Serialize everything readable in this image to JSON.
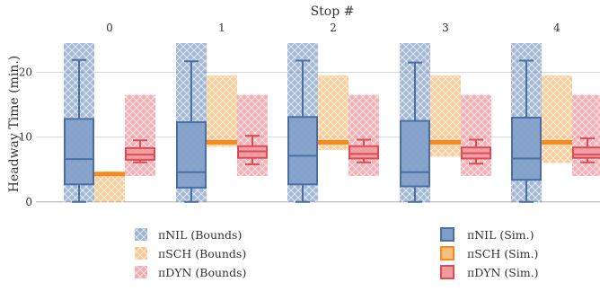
{
  "chart_data": {
    "type": "box",
    "title": "",
    "xlabel": "Stop #",
    "ylabel": "Headway Time (min.)",
    "ylim": [
      -1,
      24.5
    ],
    "yticks": [
      0,
      10,
      20
    ],
    "x_axis_position": "top",
    "grid": true,
    "legend_position": "bottom",
    "categories": [
      "0",
      "1",
      "2",
      "3",
      "4"
    ],
    "bounds": [
      {
        "name": "πNIL (Bounds)",
        "color": "#5a7fb5",
        "ranges": [
          [
            0,
            24.5
          ],
          [
            0,
            24.5
          ],
          [
            0,
            24.5
          ],
          [
            0,
            24.5
          ],
          [
            0,
            24.5
          ]
        ]
      },
      {
        "name": "πSCH (Bounds)",
        "color": "#f6a54a",
        "ranges": [
          [
            0,
            4.5
          ],
          [
            8.5,
            19.5
          ],
          [
            8.0,
            19.5
          ],
          [
            7.0,
            19.5
          ],
          [
            6.0,
            19.5
          ]
        ]
      },
      {
        "name": "πDYN (Bounds)",
        "color": "#e8717a",
        "ranges": [
          [
            4.0,
            16.5
          ],
          [
            4.0,
            16.5
          ],
          [
            4.0,
            16.5
          ],
          [
            4.0,
            16.5
          ],
          [
            4.0,
            16.5
          ]
        ]
      }
    ],
    "boxes": [
      {
        "name": "πNIL (Sim.)",
        "fill": "#7f9ec8",
        "stroke": "#4a6fa5",
        "stats": [
          {
            "min": 0,
            "q1": 2.7,
            "median": 6.6,
            "q3": 12.8,
            "max": 21.9
          },
          {
            "min": 0,
            "q1": 2.2,
            "median": 4.6,
            "q3": 12.3,
            "max": 21.7
          },
          {
            "min": 0,
            "q1": 2.7,
            "median": 7.1,
            "q3": 13.1,
            "max": 21.8
          },
          {
            "min": 0,
            "q1": 2.4,
            "median": 4.6,
            "q3": 12.5,
            "max": 21.5
          },
          {
            "min": 0,
            "q1": 3.4,
            "median": 6.7,
            "q3": 13.0,
            "max": 21.8
          }
        ]
      },
      {
        "name": "πSCH (Sim.)",
        "fill": "#f9bf7b",
        "stroke": "#f58a1f",
        "stats": [
          {
            "min": 4.2,
            "q1": 4.2,
            "median": 4.3,
            "q3": 4.4,
            "max": 4.5
          },
          {
            "min": 9.1,
            "q1": 9.1,
            "median": 9.2,
            "q3": 9.3,
            "max": 9.4
          },
          {
            "min": 9.1,
            "q1": 9.1,
            "median": 9.2,
            "q3": 9.3,
            "max": 9.4
          },
          {
            "min": 9.1,
            "q1": 9.1,
            "median": 9.2,
            "q3": 9.3,
            "max": 9.4
          },
          {
            "min": 9.1,
            "q1": 9.1,
            "median": 9.2,
            "q3": 9.3,
            "max": 9.4
          }
        ]
      },
      {
        "name": "πDYN (Sim.)",
        "fill": "#ee9ba0",
        "stroke": "#de4b55",
        "stats": [
          {
            "min": 6.1,
            "q1": 6.5,
            "median": 7.3,
            "q3": 8.3,
            "max": 9.5
          },
          {
            "min": 5.8,
            "q1": 6.8,
            "median": 7.8,
            "q3": 8.6,
            "max": 10.2
          },
          {
            "min": 6.1,
            "q1": 6.7,
            "median": 7.4,
            "q3": 8.6,
            "max": 9.6
          },
          {
            "min": 5.9,
            "q1": 6.7,
            "median": 7.5,
            "q3": 8.4,
            "max": 9.6
          },
          {
            "min": 6.1,
            "q1": 6.8,
            "median": 7.3,
            "q3": 8.4,
            "max": 9.8
          }
        ]
      }
    ]
  }
}
